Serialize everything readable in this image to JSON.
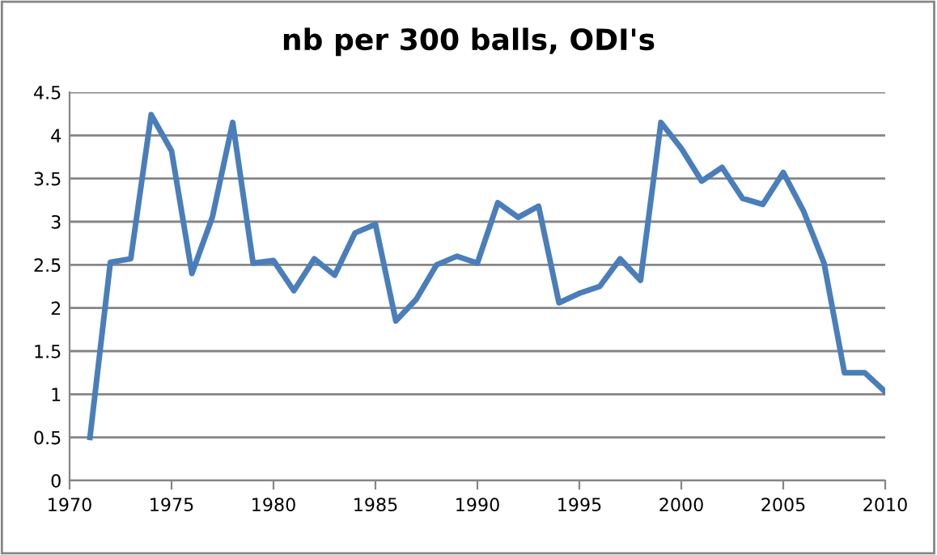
{
  "chart_data": {
    "type": "line",
    "title": "nb per 300 balls, ODI's",
    "x": [
      1971,
      1972,
      1973,
      1974,
      1975,
      1976,
      1977,
      1978,
      1979,
      1980,
      1981,
      1982,
      1983,
      1984,
      1985,
      1986,
      1987,
      1988,
      1989,
      1990,
      1991,
      1992,
      1993,
      1994,
      1995,
      1996,
      1997,
      1998,
      1999,
      2000,
      2001,
      2002,
      2003,
      2004,
      2005,
      2006,
      2007,
      2008,
      2009,
      2010
    ],
    "series": [
      {
        "color": "#4a7ebb",
        "values": [
          0.5,
          2.53,
          2.57,
          4.24,
          3.82,
          2.4,
          3.05,
          4.15,
          2.52,
          2.55,
          2.2,
          2.57,
          2.38,
          2.87,
          2.97,
          1.85,
          2.1,
          2.5,
          2.6,
          2.52,
          3.22,
          3.05,
          3.18,
          2.06,
          2.17,
          2.25,
          2.57,
          2.32,
          4.15,
          3.85,
          3.47,
          3.63,
          3.27,
          3.2,
          3.57,
          3.12,
          2.52,
          1.25,
          1.25,
          1.03
        ]
      }
    ],
    "xlim": [
      1970,
      2010
    ],
    "xticks": [
      1970,
      1975,
      1980,
      1985,
      1990,
      1995,
      2000,
      2005,
      2010
    ],
    "ylim": [
      0,
      4.5
    ],
    "yticks": [
      0,
      0.5,
      1,
      1.5,
      2,
      2.5,
      3,
      3.5,
      4,
      4.5
    ],
    "grid": "y",
    "legend": false,
    "marker": "none",
    "line_style": "solid"
  }
}
